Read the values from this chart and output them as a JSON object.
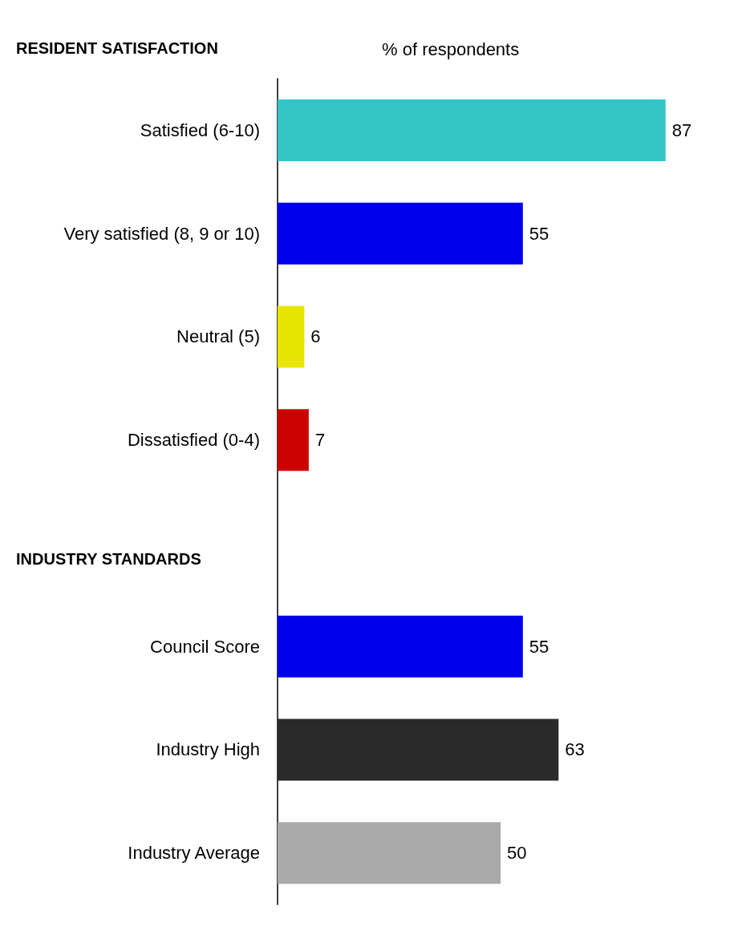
{
  "chart_data": {
    "type": "bar",
    "orientation": "horizontal",
    "xlabel": "% of respondents",
    "categories": [
      "Satisfied (6-10)",
      "Very satisfied (8, 9 or 10)",
      "Neutral (5)",
      "Dissatisfied (0-4)",
      null,
      "Council Score",
      "Industry High",
      "Industry Average"
    ],
    "values": [
      87,
      55,
      6,
      7,
      null,
      55,
      63,
      50
    ],
    "colors": [
      "#33c6c6",
      "#0000ee",
      "#e6e600",
      "#cc0000",
      "#ffffff",
      "#0000ee",
      "#2a2a2a",
      "#aaaaaa"
    ],
    "tick_labels": "y",
    "data_labels": true,
    "annotations": [
      "RESIDENT SATISFACTION",
      "INDUSTRY STANDARDS"
    ]
  }
}
